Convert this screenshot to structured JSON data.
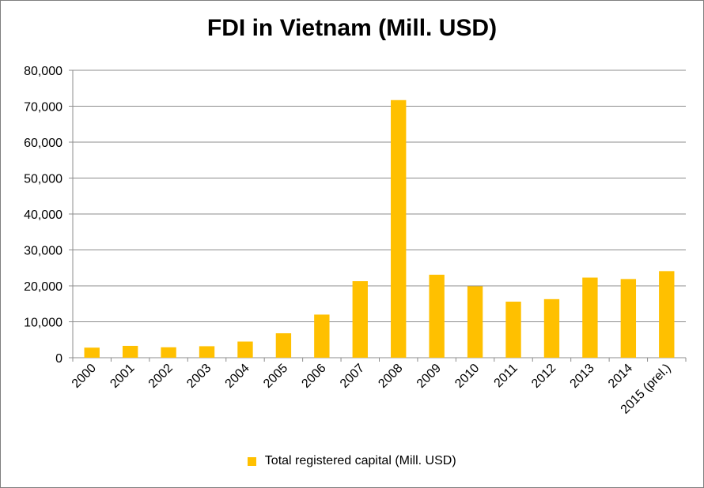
{
  "chart_data": {
    "type": "bar",
    "title": "FDI in Vietnam (Mill. USD)",
    "xlabel": "",
    "ylabel": "",
    "ylim": [
      0,
      80000
    ],
    "yticks": [
      0,
      10000,
      20000,
      30000,
      40000,
      50000,
      60000,
      70000,
      80000
    ],
    "ytick_labels": [
      "0",
      "10,000",
      "20,000",
      "30,000",
      "40,000",
      "50,000",
      "60,000",
      "70,000",
      "80,000"
    ],
    "grid": true,
    "legend_position": "bottom",
    "categories": [
      "2000",
      "2001",
      "2002",
      "2003",
      "2004",
      "2005",
      "2006",
      "2007",
      "2008",
      "2009",
      "2010",
      "2011",
      "2012",
      "2013",
      "2014",
      "2015 (prel.)"
    ],
    "series": [
      {
        "name": "Total registered capital (Mill. USD)",
        "color": "#FFC000",
        "values": [
          2800,
          3300,
          2900,
          3200,
          4500,
          6800,
          12000,
          21300,
          71700,
          23100,
          19900,
          15600,
          16300,
          22300,
          21900,
          24100
        ]
      }
    ]
  }
}
